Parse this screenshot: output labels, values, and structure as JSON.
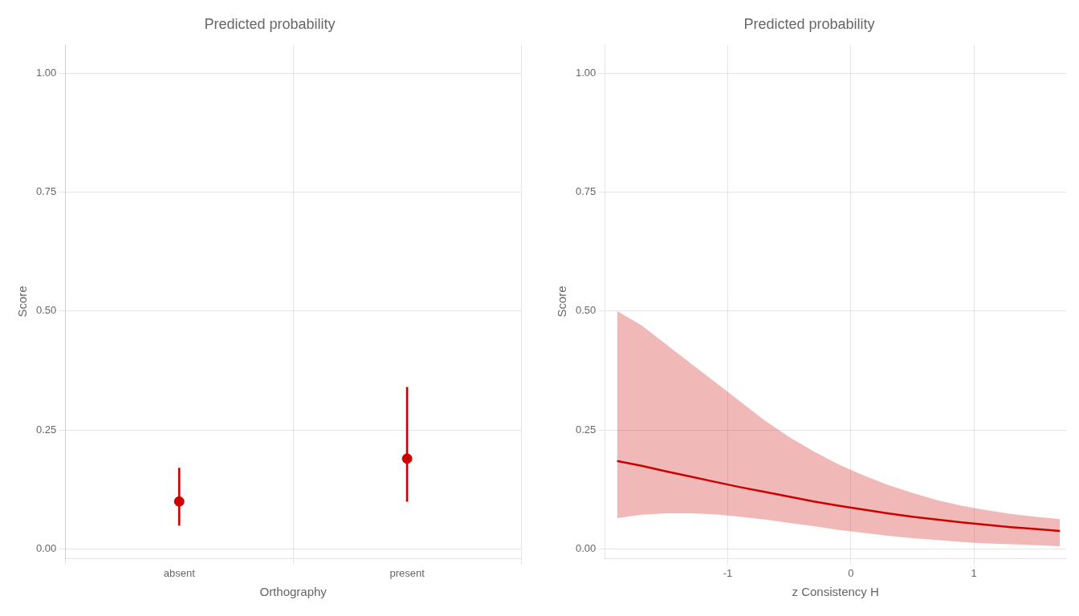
{
  "chart_data": [
    {
      "type": "errorbar",
      "title": "Predicted probability",
      "xlabel": "Orthography",
      "ylabel": "Score",
      "categories": [
        "absent",
        "present"
      ],
      "values": [
        0.1,
        0.19
      ],
      "lower": [
        0.05,
        0.1
      ],
      "upper": [
        0.17,
        0.34
      ],
      "color": "#cc0000",
      "ylim": [
        -0.02,
        1.06
      ],
      "yticks": [
        {
          "value": 0.0,
          "label": "0.00"
        },
        0.25,
        {
          "value": 0.5,
          "label": "0.50"
        },
        0.75,
        {
          "value": 1.0,
          "label": "1.00"
        }
      ],
      "grid": true
    },
    {
      "type": "line",
      "title": "Predicted probability",
      "xlabel": "z Consistency H",
      "ylabel": "Score",
      "x": [
        -1.9,
        -1.7,
        -1.5,
        -1.3,
        -1.1,
        -0.9,
        -0.7,
        -0.5,
        -0.3,
        -0.1,
        0.1,
        0.3,
        0.5,
        0.7,
        0.9,
        1.1,
        1.3,
        1.5,
        1.7
      ],
      "values": [
        0.185,
        0.175,
        0.163,
        0.152,
        0.141,
        0.13,
        0.12,
        0.11,
        0.1,
        0.091,
        0.083,
        0.075,
        0.068,
        0.062,
        0.056,
        0.051,
        0.046,
        0.042,
        0.038
      ],
      "upper": [
        0.5,
        0.47,
        0.43,
        0.39,
        0.35,
        0.31,
        0.27,
        0.235,
        0.205,
        0.178,
        0.155,
        0.135,
        0.118,
        0.103,
        0.091,
        0.082,
        0.074,
        0.068,
        0.063
      ],
      "lower": [
        0.065,
        0.072,
        0.075,
        0.075,
        0.073,
        0.068,
        0.062,
        0.055,
        0.048,
        0.04,
        0.034,
        0.028,
        0.023,
        0.019,
        0.015,
        0.012,
        0.01,
        0.008,
        0.006
      ],
      "color": "#cc0000",
      "xlim": [
        -2.0,
        1.75
      ],
      "xticks": [
        -1,
        0,
        1
      ],
      "ylim": [
        -0.02,
        1.06
      ],
      "yticks": [
        {
          "value": 0.0,
          "label": "0.00"
        },
        0.25,
        {
          "value": 0.5,
          "label": "0.50"
        },
        0.75,
        {
          "value": 1.0,
          "label": "1.00"
        }
      ],
      "grid": true
    }
  ]
}
